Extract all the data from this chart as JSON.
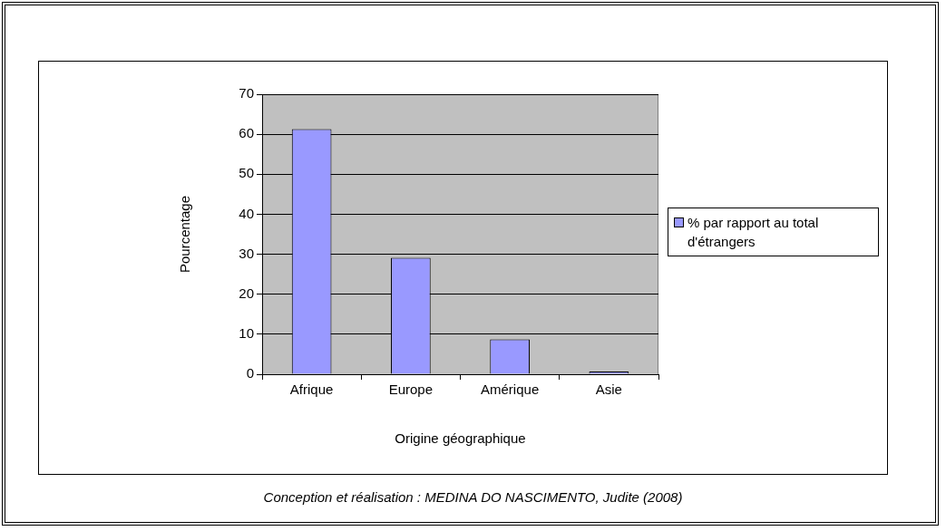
{
  "chart_data": {
    "type": "bar",
    "xlabel": "Origine géographique",
    "ylabel": "Pourcentage",
    "categories": [
      "Afrique",
      "Europe",
      "Amérique",
      "Asie"
    ],
    "series": [
      {
        "name": "% par rapport au total d'étrangers",
        "color": "#9999ff",
        "values": [
          61.3,
          29.1,
          8.7,
          0.7
        ]
      }
    ],
    "ylim": [
      0,
      70
    ],
    "yticks": [
      0,
      10,
      20,
      30,
      40,
      50,
      60,
      70
    ],
    "grid": "y",
    "legend": "right",
    "annotations": [
      "Conception et réalisation : MEDINA DO NASCIMENTO, Judite (2008)"
    ]
  }
}
